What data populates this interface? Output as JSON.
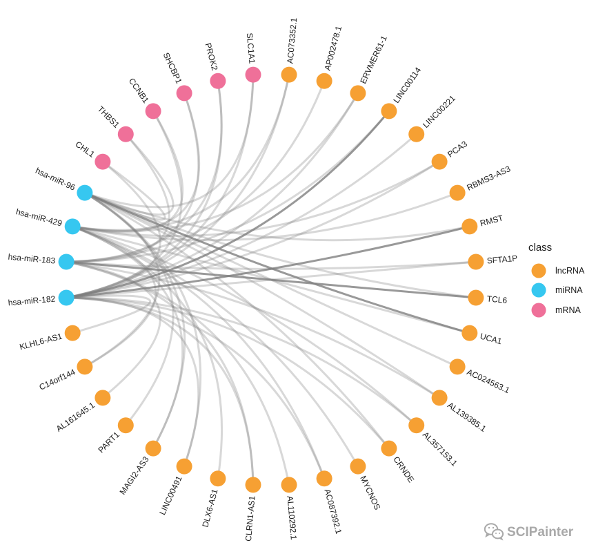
{
  "colors": {
    "lncRNA": "#F6A033",
    "miRNA": "#36C7F0",
    "mRNA": "#EF7099",
    "edge": "#7f7f7f"
  },
  "nodes": [
    {
      "name": "AC073352.1",
      "class": "lncRNA"
    },
    {
      "name": "AP002478.1",
      "class": "lncRNA"
    },
    {
      "name": "ERVMER61-1",
      "class": "lncRNA"
    },
    {
      "name": "LINC00114",
      "class": "lncRNA"
    },
    {
      "name": "LINC00221",
      "class": "lncRNA"
    },
    {
      "name": "PCA3",
      "class": "lncRNA"
    },
    {
      "name": "RBMS3-AS3",
      "class": "lncRNA"
    },
    {
      "name": "RMST",
      "class": "lncRNA"
    },
    {
      "name": "SFTA1P",
      "class": "lncRNA"
    },
    {
      "name": "TCL6",
      "class": "lncRNA"
    },
    {
      "name": "UCA1",
      "class": "lncRNA"
    },
    {
      "name": "AC024563.1",
      "class": "lncRNA"
    },
    {
      "name": "AL139385.1",
      "class": "lncRNA"
    },
    {
      "name": "AL357153.1",
      "class": "lncRNA"
    },
    {
      "name": "CRNDE",
      "class": "lncRNA"
    },
    {
      "name": "MYCNOS",
      "class": "lncRNA"
    },
    {
      "name": "AC087392.1",
      "class": "lncRNA"
    },
    {
      "name": "AL110292.1",
      "class": "lncRNA"
    },
    {
      "name": "CLRN1-AS1",
      "class": "lncRNA"
    },
    {
      "name": "DLX6-AS1",
      "class": "lncRNA"
    },
    {
      "name": "LINC00491",
      "class": "lncRNA"
    },
    {
      "name": "MAGI2-AS3",
      "class": "lncRNA"
    },
    {
      "name": "PART1",
      "class": "lncRNA"
    },
    {
      "name": "AL161645.1",
      "class": "lncRNA"
    },
    {
      "name": "C14orf144",
      "class": "lncRNA"
    },
    {
      "name": "KLHL6-AS1",
      "class": "lncRNA"
    },
    {
      "name": "hsa-miR-182",
      "class": "miRNA"
    },
    {
      "name": "hsa-miR-183",
      "class": "miRNA"
    },
    {
      "name": "hsa-miR-429",
      "class": "miRNA"
    },
    {
      "name": "hsa-miR-96",
      "class": "miRNA"
    },
    {
      "name": "CHL1",
      "class": "mRNA"
    },
    {
      "name": "THBS1",
      "class": "mRNA"
    },
    {
      "name": "CCNB1",
      "class": "mRNA"
    },
    {
      "name": "SHCBP1",
      "class": "mRNA"
    },
    {
      "name": "PROK2",
      "class": "mRNA"
    },
    {
      "name": "SLC1A1",
      "class": "mRNA"
    }
  ],
  "edges": [
    {
      "source": 26,
      "target": 0,
      "weight": 1
    },
    {
      "source": 28,
      "target": 0,
      "weight": 1
    },
    {
      "source": 27,
      "target": 1,
      "weight": 1
    },
    {
      "source": 28,
      "target": 2,
      "weight": 1
    },
    {
      "source": 26,
      "target": 2,
      "weight": 1
    },
    {
      "source": 26,
      "target": 3,
      "weight": 2
    },
    {
      "source": 27,
      "target": 3,
      "weight": 1
    },
    {
      "source": 26,
      "target": 4,
      "weight": 1
    },
    {
      "source": 28,
      "target": 5,
      "weight": 1
    },
    {
      "source": 26,
      "target": 5,
      "weight": 1
    },
    {
      "source": 28,
      "target": 6,
      "weight": 1
    },
    {
      "source": 26,
      "target": 7,
      "weight": 2
    },
    {
      "source": 29,
      "target": 7,
      "weight": 1
    },
    {
      "source": 27,
      "target": 8,
      "weight": 1
    },
    {
      "source": 26,
      "target": 8,
      "weight": 1
    },
    {
      "source": 27,
      "target": 9,
      "weight": 2
    },
    {
      "source": 29,
      "target": 9,
      "weight": 1
    },
    {
      "source": 29,
      "target": 10,
      "weight": 2
    },
    {
      "source": 28,
      "target": 10,
      "weight": 1
    },
    {
      "source": 29,
      "target": 11,
      "weight": 1
    },
    {
      "source": 29,
      "target": 12,
      "weight": 1
    },
    {
      "source": 27,
      "target": 12,
      "weight": 1
    },
    {
      "source": 28,
      "target": 13,
      "weight": 1
    },
    {
      "source": 26,
      "target": 13,
      "weight": 1
    },
    {
      "source": 26,
      "target": 14,
      "weight": 1
    },
    {
      "source": 29,
      "target": 14,
      "weight": 1
    },
    {
      "source": 28,
      "target": 15,
      "weight": 1
    },
    {
      "source": 26,
      "target": 16,
      "weight": 1
    },
    {
      "source": 28,
      "target": 16,
      "weight": 1
    },
    {
      "source": 27,
      "target": 17,
      "weight": 1
    },
    {
      "source": 27,
      "target": 18,
      "weight": 1
    },
    {
      "source": 26,
      "target": 18,
      "weight": 1
    },
    {
      "source": 28,
      "target": 19,
      "weight": 1
    },
    {
      "source": 29,
      "target": 20,
      "weight": 1
    },
    {
      "source": 26,
      "target": 20,
      "weight": 1
    },
    {
      "source": 29,
      "target": 21,
      "weight": 1
    },
    {
      "source": 28,
      "target": 21,
      "weight": 1
    },
    {
      "source": 29,
      "target": 22,
      "weight": 1
    },
    {
      "source": 27,
      "target": 23,
      "weight": 1
    },
    {
      "source": 28,
      "target": 24,
      "weight": 1
    },
    {
      "source": 29,
      "target": 24,
      "weight": 1
    },
    {
      "source": 26,
      "target": 25,
      "weight": 1
    },
    {
      "source": 26,
      "target": 30,
      "weight": 1
    },
    {
      "source": 29,
      "target": 30,
      "weight": 1
    },
    {
      "source": 27,
      "target": 31,
      "weight": 1
    },
    {
      "source": 29,
      "target": 31,
      "weight": 1
    },
    {
      "source": 26,
      "target": 32,
      "weight": 1
    },
    {
      "source": 28,
      "target": 32,
      "weight": 1
    },
    {
      "source": 28,
      "target": 33,
      "weight": 1
    },
    {
      "source": 27,
      "target": 33,
      "weight": 1
    },
    {
      "source": 27,
      "target": 34,
      "weight": 1
    },
    {
      "source": 26,
      "target": 34,
      "weight": 1
    },
    {
      "source": 26,
      "target": 35,
      "weight": 1
    },
    {
      "source": 29,
      "target": 35,
      "weight": 1
    }
  ],
  "legend": {
    "title": "class",
    "items": [
      {
        "label": "lncRNA"
      },
      {
        "label": "miRNA"
      },
      {
        "label": "mRNA"
      }
    ]
  },
  "watermark": {
    "icon": "wechat-icon",
    "text": "SCIPainter"
  }
}
